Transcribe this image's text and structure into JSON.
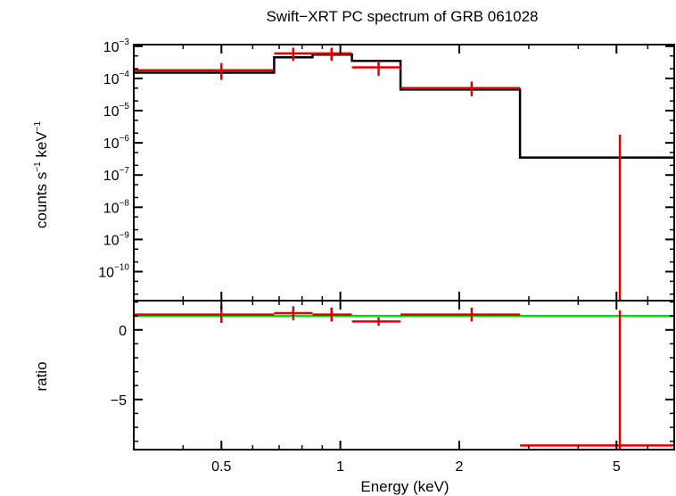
{
  "chart_data": {
    "type": "line",
    "title": "Swift−XRT PC spectrum of GRB 061028",
    "xlabel": "Energy (keV)",
    "xscale": "log",
    "xlim": [
      0.3,
      7.0
    ],
    "x_ticks": [
      {
        "value": 0.5,
        "label": "0.5"
      },
      {
        "value": 1,
        "label": "1"
      },
      {
        "value": 2,
        "label": "2"
      },
      {
        "value": 5,
        "label": "5"
      }
    ],
    "colors": {
      "data": "#e00000",
      "model": "#000000",
      "unity": "#00dd00",
      "axes": "#000000"
    },
    "top_panel": {
      "ylabel": {
        "base": "counts s",
        "exp1": "−1",
        "mid": " keV",
        "exp2": "−1"
      },
      "yscale": "log",
      "ylim_exp": [
        -10.9,
        -2.95
      ],
      "y_ticks": [
        {
          "exp": -3,
          "base": "10",
          "sup": "−3"
        },
        {
          "exp": -4,
          "base": "10",
          "sup": "−4"
        },
        {
          "exp": -5,
          "base": "10",
          "sup": "−5"
        },
        {
          "exp": -6,
          "base": "10",
          "sup": "−6"
        },
        {
          "exp": -7,
          "base": "10",
          "sup": "−7"
        },
        {
          "exp": -8,
          "base": "10",
          "sup": "−8"
        },
        {
          "exp": -9,
          "base": "10",
          "sup": "−9"
        },
        {
          "exp": -10,
          "base": "10",
          "sup": "−10"
        }
      ],
      "model_steps": [
        {
          "x0": 0.3,
          "x1": 0.68,
          "y": 0.00015
        },
        {
          "x0": 0.68,
          "x1": 0.85,
          "y": 0.00045
        },
        {
          "x0": 0.85,
          "x1": 1.07,
          "y": 0.00055
        },
        {
          "x0": 1.07,
          "x1": 1.42,
          "y": 0.00035
        },
        {
          "x0": 1.42,
          "x1": 2.85,
          "y": 4.5e-05
        },
        {
          "x0": 2.85,
          "x1": 7.0,
          "y": 3.5e-07
        }
      ],
      "data_points": [
        {
          "x": 0.5,
          "xlo": 0.3,
          "xhi": 0.68,
          "y": 0.00018,
          "ylo": 9e-05,
          "yhi": 0.0003
        },
        {
          "x": 0.76,
          "xlo": 0.68,
          "xhi": 0.85,
          "y": 0.0006,
          "ylo": 0.00035,
          "yhi": 0.0009
        },
        {
          "x": 0.95,
          "xlo": 0.85,
          "xhi": 1.07,
          "y": 0.0006,
          "ylo": 0.00035,
          "yhi": 0.0009
        },
        {
          "x": 1.25,
          "xlo": 1.07,
          "xhi": 1.42,
          "y": 0.00022,
          "ylo": 0.00012,
          "yhi": 0.00035
        },
        {
          "x": 2.15,
          "xlo": 1.42,
          "xhi": 2.85,
          "y": 5e-05,
          "ylo": 2.8e-05,
          "yhi": 8e-05
        },
        {
          "x": 5.1,
          "xlo": 2.85,
          "xhi": 7.0,
          "y": null,
          "ylo": 1e-11,
          "yhi": 1.8e-06
        }
      ]
    },
    "bottom_panel": {
      "ylabel": "ratio",
      "ylim": [
        -8.6,
        2.1
      ],
      "y_ticks": [
        {
          "value": 0,
          "label": "0"
        },
        {
          "value": -5,
          "label": "−5"
        }
      ],
      "unity_line": 1,
      "data_points": [
        {
          "x": 0.5,
          "xlo": 0.3,
          "xhi": 0.68,
          "y": 1.1,
          "ylo": 0.5,
          "yhi": 1.7
        },
        {
          "x": 0.76,
          "xlo": 0.68,
          "xhi": 0.85,
          "y": 1.2,
          "ylo": 0.7,
          "yhi": 1.7
        },
        {
          "x": 0.95,
          "xlo": 0.85,
          "xhi": 1.07,
          "y": 1.1,
          "ylo": 0.6,
          "yhi": 1.6
        },
        {
          "x": 1.25,
          "xlo": 1.07,
          "xhi": 1.42,
          "y": 0.6,
          "ylo": 0.3,
          "yhi": 0.9
        },
        {
          "x": 2.15,
          "xlo": 1.42,
          "xhi": 2.85,
          "y": 1.1,
          "ylo": 0.6,
          "yhi": 1.6
        },
        {
          "x": 5.1,
          "xlo": 2.85,
          "xhi": 7.0,
          "y": -8.3,
          "ylo": -8.6,
          "yhi": 1.4
        }
      ]
    }
  }
}
